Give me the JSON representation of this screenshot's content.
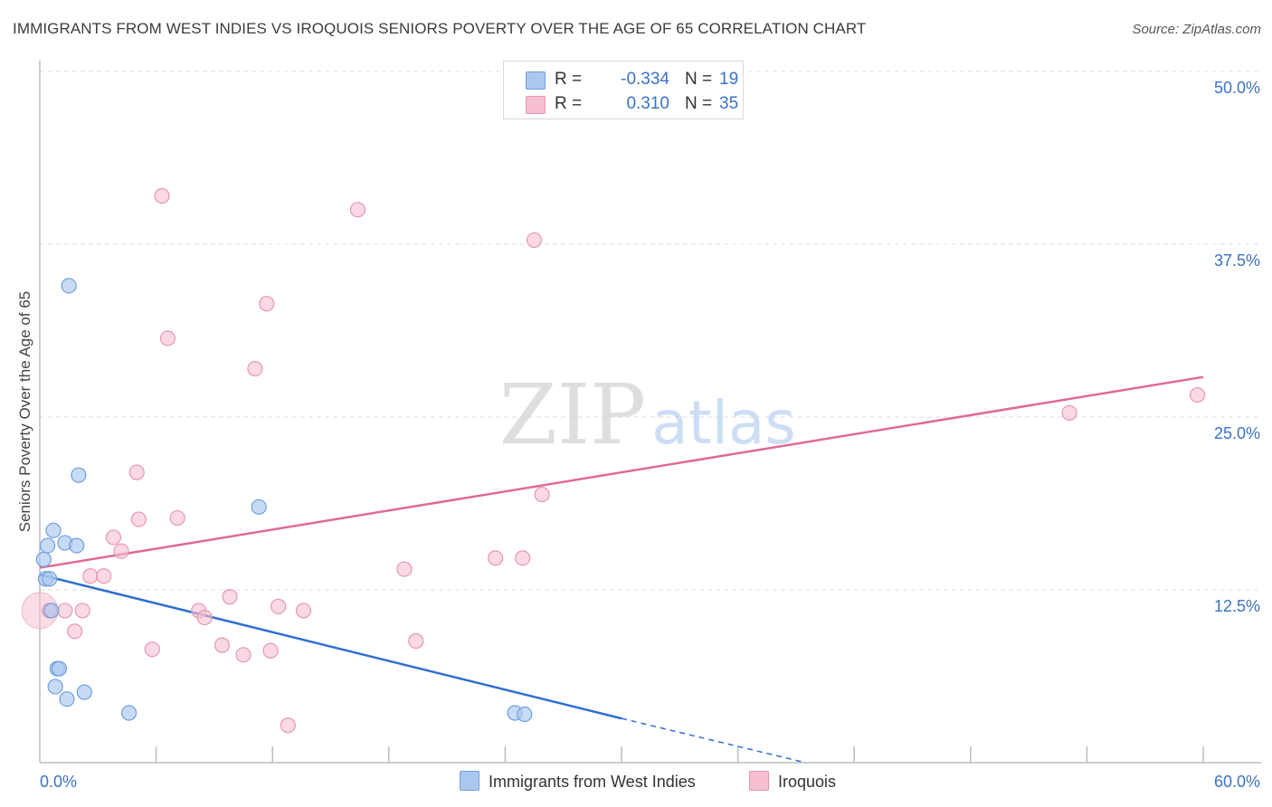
{
  "header": {
    "title": "IMMIGRANTS FROM WEST INDIES VS IROQUOIS SENIORS POVERTY OVER THE AGE OF 65 CORRELATION CHART",
    "source": "Source: ZipAtlas.com"
  },
  "legend_top": {
    "r_label": "R =",
    "n_label": "N =",
    "series": [
      {
        "r": "-0.334",
        "n": "19"
      },
      {
        "r": "0.310",
        "n": "35"
      }
    ]
  },
  "legend_bottom": {
    "items": [
      "Immigrants from West Indies",
      "Iroquois"
    ]
  },
  "watermark": {
    "zip": "ZIP",
    "atlas": "atlas"
  },
  "colors": {
    "blue_fill": "#aac8ef",
    "blue_stroke": "#6f9fdc",
    "blue_line": "#2e6fd1",
    "pink_fill": "#f6bfd1",
    "pink_stroke": "#e597b2",
    "pink_line": "#e06a95",
    "axis_text": "#3a72c4",
    "grid": "#dcdcdc"
  },
  "chart_data": {
    "type": "scatter",
    "title": "IMMIGRANTS FROM WEST INDIES VS IROQUOIS SENIORS POVERTY OVER THE AGE OF 65 CORRELATION CHART",
    "xlabel": "",
    "ylabel": "Seniors Poverty Over the Age of 65",
    "xlim": [
      0,
      60
    ],
    "ylim": [
      0,
      50
    ],
    "x_tick_labels": [
      "0.0%",
      "60.0%"
    ],
    "y_ticks": [
      {
        "value": 12.5,
        "label": "12.5%"
      },
      {
        "value": 25.0,
        "label": "25.0%"
      },
      {
        "value": 37.5,
        "label": "37.5%"
      },
      {
        "value": 50.0,
        "label": "50.0%"
      }
    ],
    "grid": true,
    "series": [
      {
        "name": "Immigrants from West Indies",
        "color": "blue",
        "r": -0.334,
        "n": 19,
        "points": [
          [
            0.2,
            14.7
          ],
          [
            0.3,
            13.3
          ],
          [
            0.4,
            15.7
          ],
          [
            0.5,
            13.3
          ],
          [
            0.6,
            11.0
          ],
          [
            0.7,
            16.8
          ],
          [
            0.8,
            5.5
          ],
          [
            0.9,
            6.8
          ],
          [
            1.0,
            6.8
          ],
          [
            1.3,
            15.9
          ],
          [
            1.4,
            4.6
          ],
          [
            1.5,
            34.5
          ],
          [
            1.9,
            15.7
          ],
          [
            2.0,
            20.8
          ],
          [
            2.3,
            5.1
          ],
          [
            4.6,
            3.6
          ],
          [
            11.3,
            18.5
          ],
          [
            24.5,
            3.6
          ],
          [
            25.0,
            3.5
          ]
        ],
        "trend": {
          "x0": 0,
          "y0": 13.6,
          "x1": 30,
          "y1": 3.2,
          "dash_to_x": 39.5,
          "dash_to_y": 0.0
        }
      },
      {
        "name": "Iroquois",
        "color": "pink",
        "r": 0.31,
        "n": 35,
        "big_point": [
          0.0,
          11.0
        ],
        "points": [
          [
            0.5,
            11.0
          ],
          [
            1.3,
            11.0
          ],
          [
            1.8,
            9.5
          ],
          [
            2.2,
            11.0
          ],
          [
            2.6,
            13.5
          ],
          [
            3.3,
            13.5
          ],
          [
            3.8,
            16.3
          ],
          [
            4.2,
            15.3
          ],
          [
            5.8,
            8.2
          ],
          [
            5.0,
            21.0
          ],
          [
            5.1,
            17.6
          ],
          [
            6.3,
            41.0
          ],
          [
            6.6,
            30.7
          ],
          [
            7.1,
            17.7
          ],
          [
            8.2,
            11.0
          ],
          [
            8.5,
            10.5
          ],
          [
            9.4,
            8.5
          ],
          [
            9.8,
            12.0
          ],
          [
            10.5,
            7.8
          ],
          [
            11.1,
            28.5
          ],
          [
            11.7,
            33.2
          ],
          [
            11.9,
            8.1
          ],
          [
            12.3,
            11.3
          ],
          [
            12.8,
            2.7
          ],
          [
            13.6,
            11.0
          ],
          [
            16.4,
            40.0
          ],
          [
            18.8,
            14.0
          ],
          [
            19.4,
            8.8
          ],
          [
            23.5,
            14.8
          ],
          [
            24.9,
            14.8
          ],
          [
            25.5,
            37.8
          ],
          [
            25.9,
            19.4
          ],
          [
            53.1,
            25.3
          ],
          [
            59.7,
            26.6
          ]
        ],
        "trend": {
          "x0": 0,
          "y0": 14.1,
          "x1": 60,
          "y1": 27.9
        }
      }
    ]
  }
}
